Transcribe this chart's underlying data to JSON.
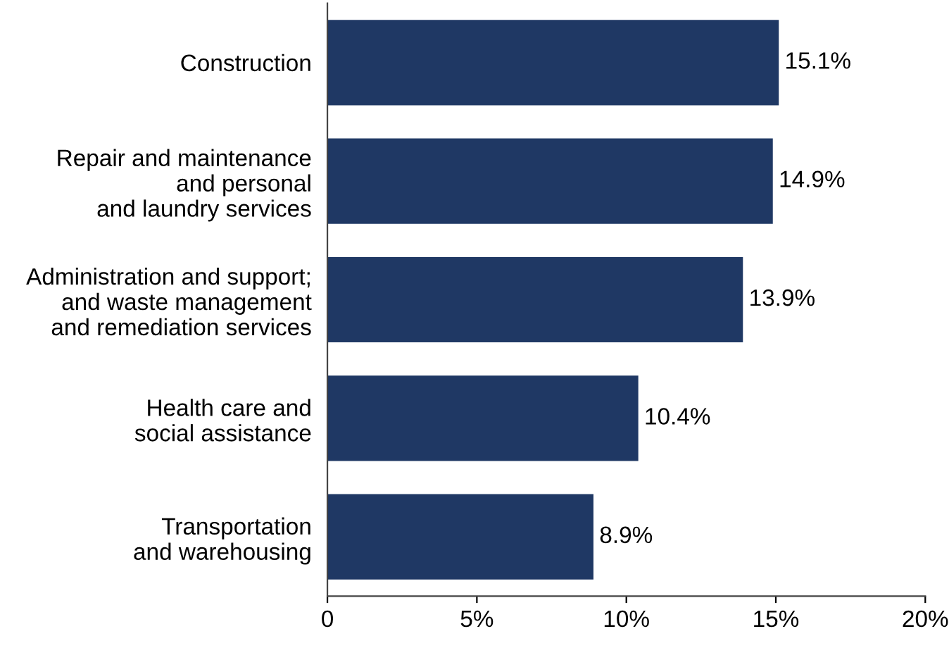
{
  "chart_data": {
    "type": "bar",
    "orientation": "horizontal",
    "categories": [
      "Construction",
      "Repair and maintenance\nand personal\nand laundry services",
      "Administration and support;\nand waste management\nand remediation services",
      "Health care and\nsocial assistance",
      "Transportation\nand warehousing"
    ],
    "values": [
      15.1,
      14.9,
      13.9,
      10.4,
      8.9
    ],
    "value_labels": [
      "15.1%",
      "14.9%",
      "13.9%",
      "10.4%",
      "8.9%"
    ],
    "color": "#1f3864",
    "xlim": [
      0,
      20
    ],
    "xticks": [
      0,
      {
        "value": 5,
        "label": "5%"
      },
      {
        "value": 10,
        "label": "10%"
      },
      {
        "value": 15,
        "label": "15%"
      },
      {
        "value": 20,
        "label": "20%"
      }
    ],
    "grid": false,
    "legend": false
  }
}
